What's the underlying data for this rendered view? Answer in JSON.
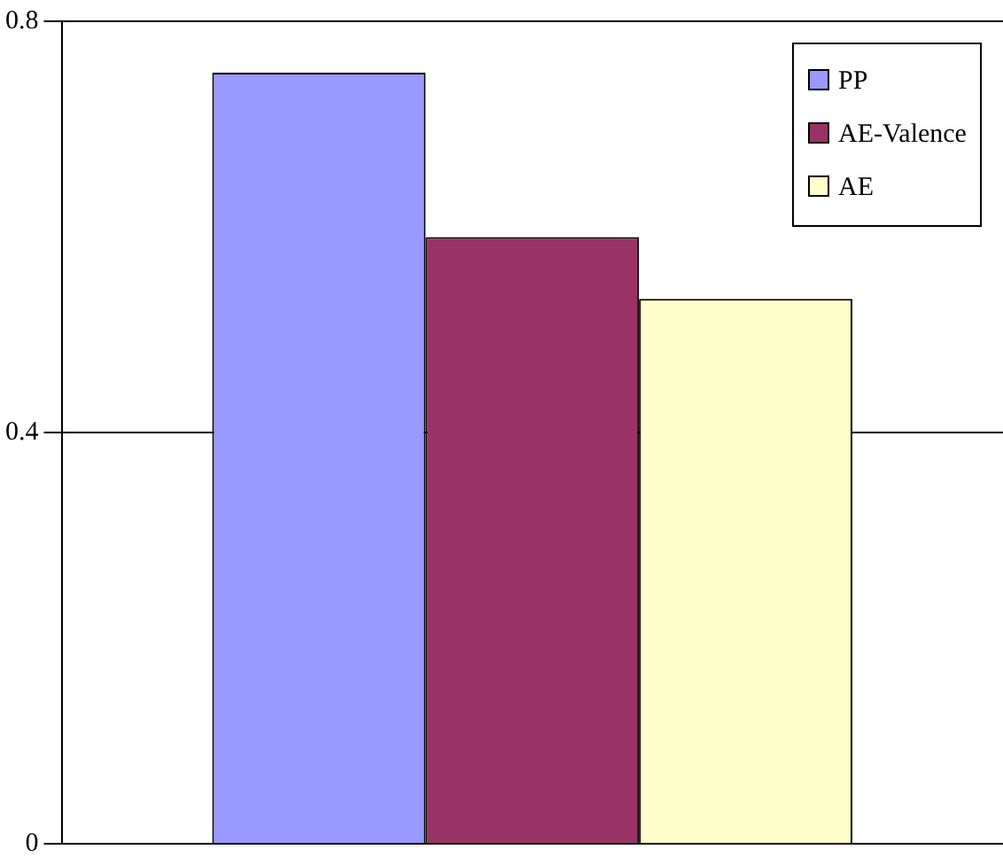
{
  "chart_data": {
    "type": "bar",
    "categories": [
      null
    ],
    "series": [
      {
        "name": "PP",
        "color": "#9999ff",
        "values": [
          0.75
        ]
      },
      {
        "name": "AE-Valence",
        "color": "#993366",
        "values": [
          0.59
        ]
      },
      {
        "name": "AE",
        "color": "#ffffcc",
        "values": [
          0.53
        ]
      }
    ],
    "ylim": [
      0,
      0.8
    ],
    "yticks": [
      0,
      0.4,
      0.8
    ],
    "grid": "y",
    "legend": "top right"
  }
}
